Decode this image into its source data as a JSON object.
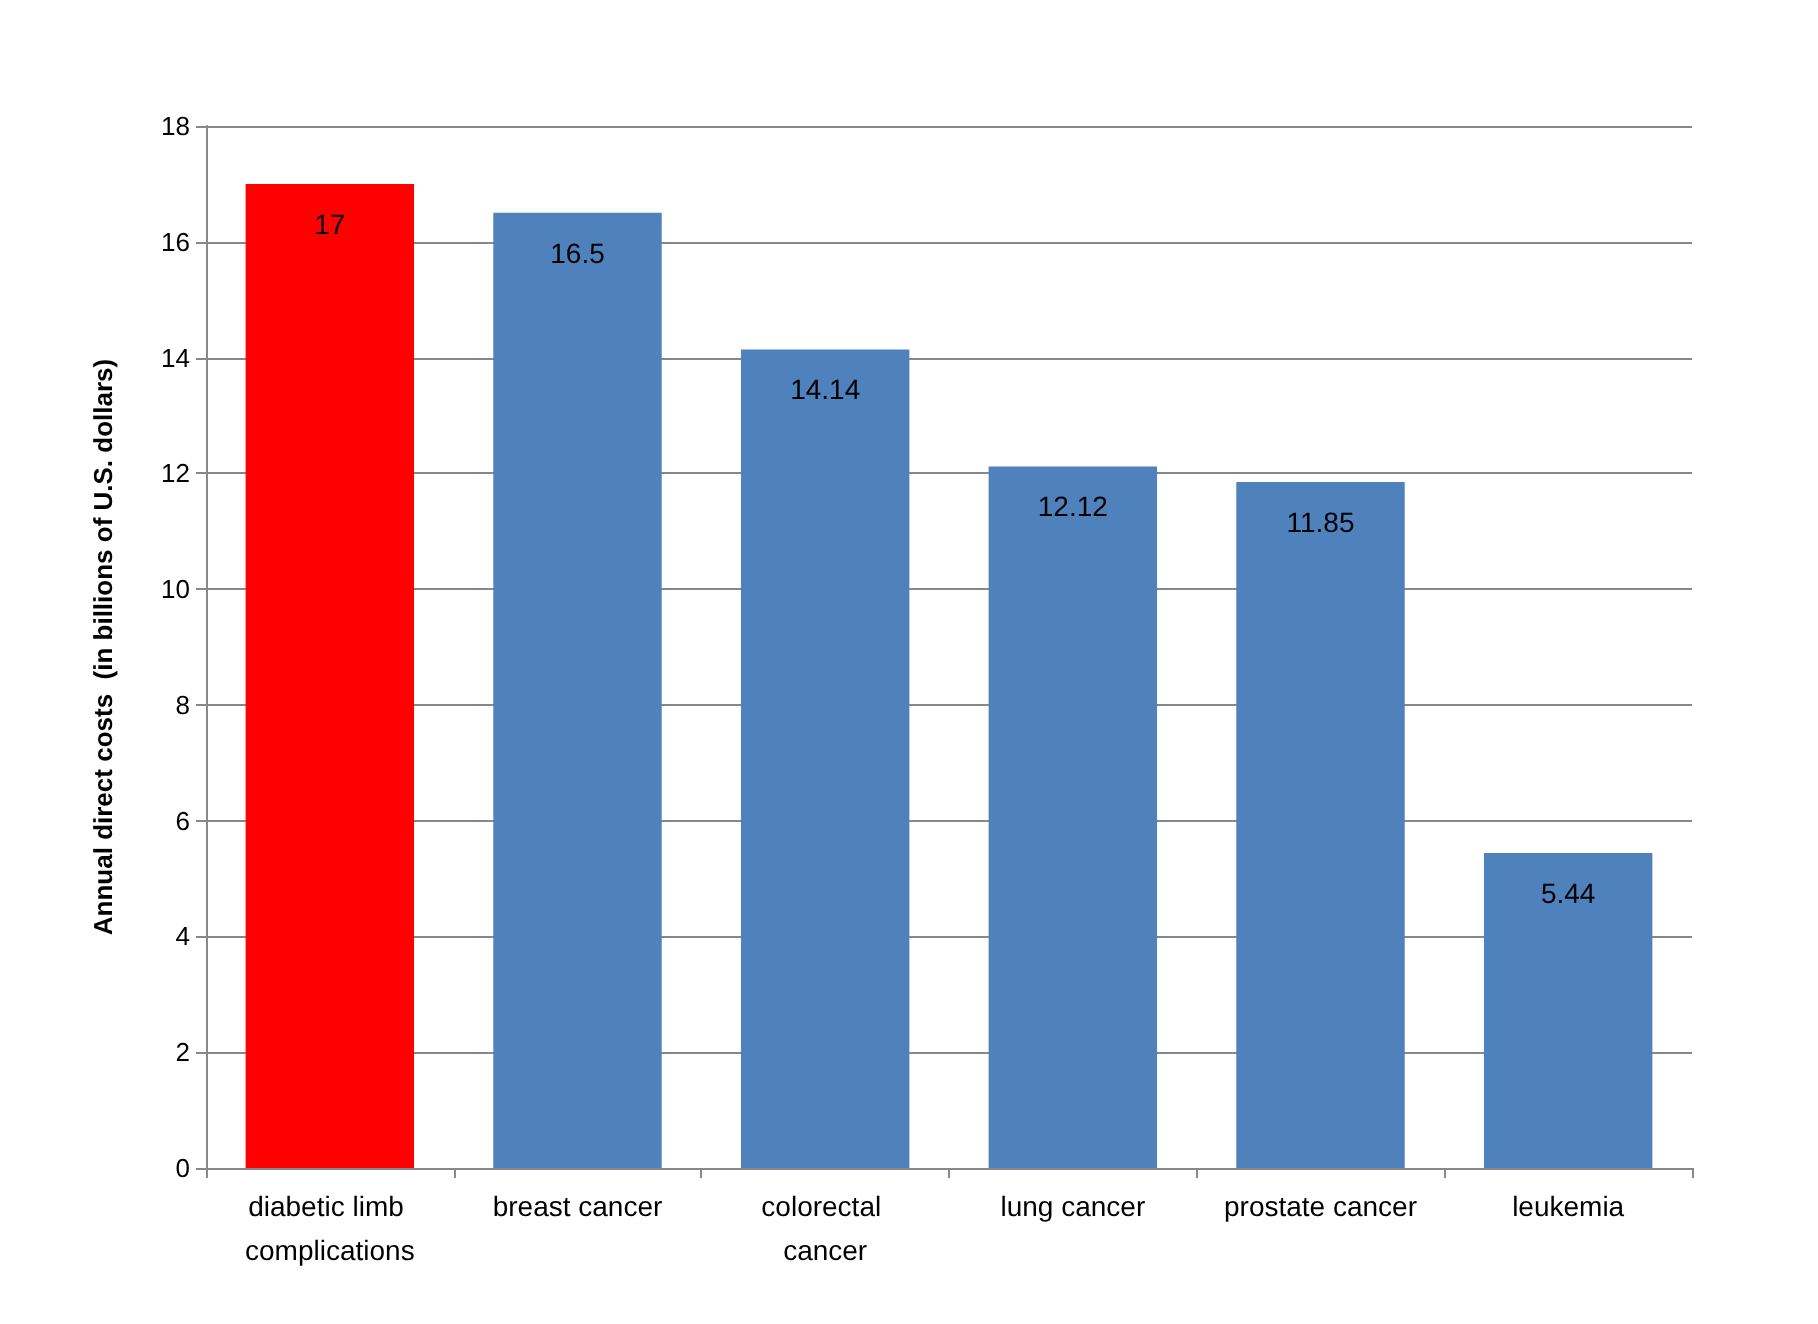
{
  "chart_data": {
    "type": "bar",
    "ylabel": "Annual direct costs  (in billions of U.S. dollars)",
    "categories": [
      "diabetic limb complications",
      "breast cancer",
      "colorectal cancer",
      "lung cancer",
      "prostate cancer",
      "leukemia"
    ],
    "values": [
      17,
      16.5,
      14.14,
      12.12,
      11.85,
      5.44
    ],
    "colors": [
      "#ff0000",
      "#4f81bd",
      "#4f81bd",
      "#4f81bd",
      "#4f81bd",
      "#4f81bd"
    ],
    "ylim": [
      0,
      18
    ],
    "yticks": [
      0,
      2,
      4,
      6,
      8,
      10,
      12,
      14,
      16,
      18
    ],
    "grid": "y",
    "data_labels": true
  }
}
